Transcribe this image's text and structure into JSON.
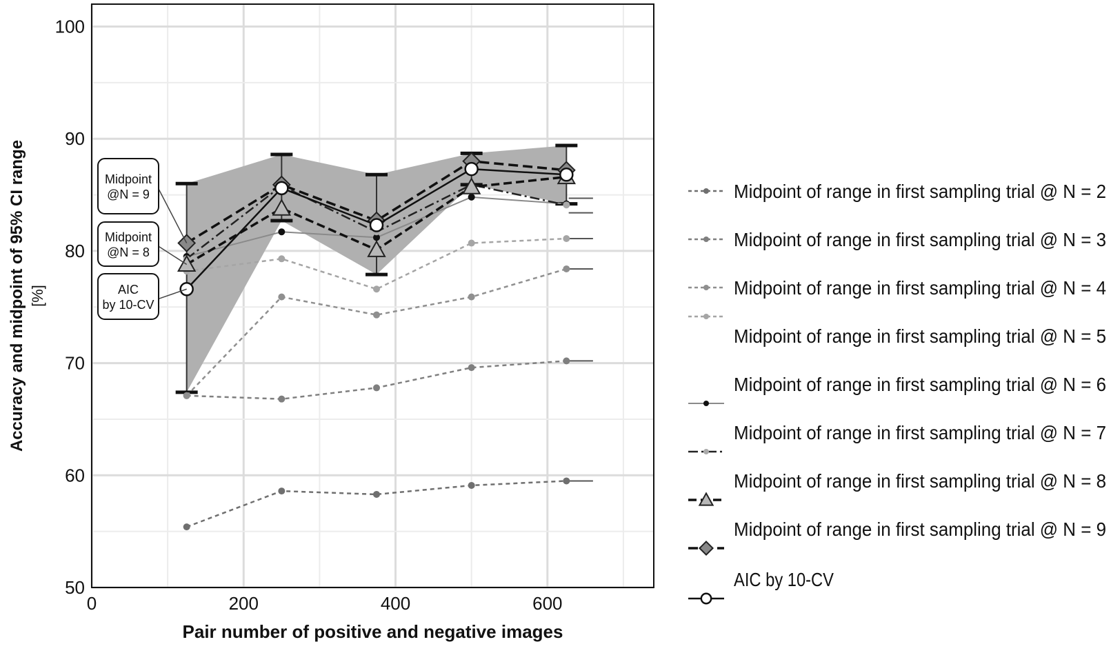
{
  "chart_data": {
    "type": "line",
    "xlabel": "Pair number of positive and negative images",
    "ylabel_line1": "Accuracy and midpoint of 95% CI range",
    "ylabel_line2": "[%]",
    "xlim": [
      0,
      740
    ],
    "ylim": [
      50,
      102
    ],
    "xticks": [
      0,
      200,
      400,
      600
    ],
    "yticks": [
      50,
      60,
      70,
      80,
      90,
      100
    ],
    "grid": true,
    "legend_position": "right",
    "x": [
      125,
      250,
      375,
      500,
      625
    ],
    "series": [
      {
        "name": "Midpoint of range in first sampling trial @ N = 2",
        "values": [
          55.4,
          58.6,
          58.3,
          59.1,
          59.5
        ],
        "color": "#6f6f6f",
        "dash": "6,5",
        "width": 2.5,
        "marker": "circle-filled",
        "marker_color": "#6f6f6f"
      },
      {
        "name": "Midpoint of range in first sampling trial @ N = 3",
        "values": [
          67.1,
          66.8,
          67.8,
          69.6,
          70.2
        ],
        "color": "#7f7f7f",
        "dash": "6,5",
        "width": 2.5,
        "marker": "circle-filled",
        "marker_color": "#7f7f7f"
      },
      {
        "name": "Midpoint of range in first sampling trial @ N = 4",
        "values": [
          67.1,
          75.9,
          74.3,
          75.9,
          78.4
        ],
        "color": "#8f8f8f",
        "dash": "6,5",
        "width": 2.5,
        "marker": "circle-filled",
        "marker_color": "#8f8f8f"
      },
      {
        "name": "Midpoint of range in first sampling trial @ N = 5",
        "values": [
          78.2,
          79.3,
          76.6,
          80.7,
          81.1
        ],
        "color": "#a5a5a5",
        "dash": "6,5",
        "width": 2.5,
        "marker": "circle-filled",
        "marker_color": "#a5a5a5"
      },
      {
        "name": "Midpoint of range in first sampling trial @ N = 6",
        "values": [
          79.5,
          81.7,
          81.2,
          84.8,
          84.2
        ],
        "color": "#8a8a8a",
        "dash": "",
        "width": 2,
        "marker": "circle-filled",
        "marker_color": "#111111"
      },
      {
        "name": "Midpoint of range in first sampling trial @ N = 7",
        "values": [
          79.3,
          85.8,
          81.7,
          85.9,
          84.1
        ],
        "color": "#222222",
        "dash": "14,5,3,5",
        "width": 2.5,
        "marker": "circle-filled",
        "marker_color": "#aaaaaa"
      },
      {
        "name": "Midpoint of range in first sampling trial @ N = 8",
        "values": [
          78.8,
          83.8,
          80.1,
          85.7,
          86.6
        ],
        "color": "#111111",
        "dash": "12,6",
        "width": 3.5,
        "marker": "triangle",
        "marker_color": "#b8b8b8"
      },
      {
        "name": "Midpoint of range in first sampling trial @ N = 9",
        "values": [
          80.7,
          85.9,
          82.7,
          88.0,
          87.2
        ],
        "color": "#111111",
        "dash": "14,7",
        "width": 3.5,
        "marker": "diamond",
        "marker_color": "#888888"
      },
      {
        "name": "AIC by 10-CV",
        "values": [
          76.6,
          85.6,
          82.3,
          87.3,
          86.8
        ],
        "color": "#111111",
        "dash": "",
        "width": 2.5,
        "marker": "circle-open",
        "marker_color": "#ffffff"
      }
    ],
    "ci_band": {
      "name": "AIC by 10-CV",
      "lower": [
        67.4,
        82.7,
        77.9,
        85.9,
        84.2
      ],
      "upper": [
        86.0,
        88.6,
        86.8,
        88.7,
        89.4
      ],
      "color": "#b0b0b0"
    },
    "end_ticks_y": [
      59.5,
      70.2,
      78.4,
      81.1,
      84.7,
      83.4
    ],
    "annotations": [
      {
        "lines": [
          "Midpoint",
          "@N = 9"
        ],
        "target_x": 125,
        "target_y": 80.7
      },
      {
        "lines": [
          "Midpoint",
          "@N = 8"
        ],
        "target_x": 125,
        "target_y": 78.8
      },
      {
        "lines": [
          "AIC",
          "by 10-CV"
        ],
        "target_x": 125,
        "target_y": 76.6
      }
    ],
    "legend": {
      "entries": [
        "Midpoint of range in first sampling trial @ N = 2",
        "Midpoint of range in first sampling trial @ N = 3",
        "Midpoint of range in first sampling trial @ N = 4",
        "Midpoint of range in first sampling trial @ N = 5",
        "Midpoint of range in first sampling trial @ N = 6",
        "Midpoint of range in first sampling trial @ N = 7",
        "Midpoint of range in first sampling trial @ N = 8",
        "Midpoint of range in first sampling trial @ N = 9",
        "AIC by 10-CV"
      ]
    }
  }
}
